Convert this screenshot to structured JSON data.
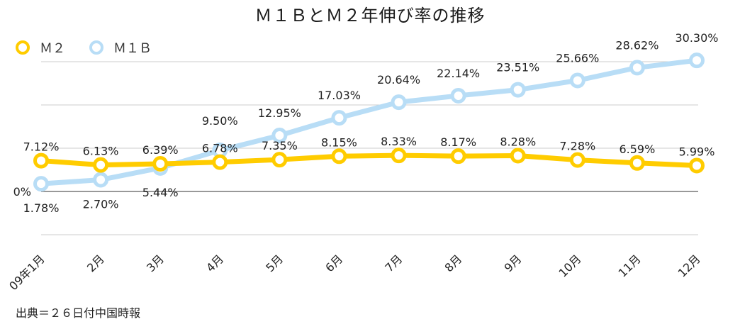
{
  "chart_data": {
    "type": "line",
    "title": "Ｍ１ＢとＭ２年伸び率の推移",
    "categories": [
      "09年1月",
      "2月",
      "3月",
      "4月",
      "5月",
      "6月",
      "7月",
      "8月",
      "9月",
      "10月",
      "11月",
      "12月"
    ],
    "series": [
      {
        "name": "Ｍ２",
        "color": "#FFCC00",
        "values": [
          7.12,
          6.13,
          6.39,
          6.78,
          7.35,
          8.15,
          8.33,
          8.17,
          8.28,
          7.28,
          6.59,
          5.99
        ],
        "labels": [
          "7.12%",
          "6.13%",
          "6.39%",
          "6.78%",
          "7.35%",
          "8.15%",
          "8.33%",
          "8.17%",
          "8.28%",
          "7.28%",
          "6.59%",
          "5.99%"
        ]
      },
      {
        "name": "Ｍ１Ｂ",
        "color": "#B8DDF6",
        "values": [
          1.78,
          2.7,
          5.44,
          9.5,
          12.95,
          17.03,
          20.64,
          22.14,
          23.51,
          25.66,
          28.62,
          30.3
        ],
        "labels": [
          "1.78%",
          "2.70%",
          "5.44%",
          "9.50%",
          "12.95%",
          "17.03%",
          "20.64%",
          "22.14%",
          "23.51%",
          "25.66%",
          "28.62%",
          "30.30%"
        ]
      }
    ],
    "y_tick_labels": [
      {
        "value": 0,
        "label": "0%"
      }
    ],
    "ylim": [
      -10,
      30
    ],
    "grid": true,
    "legend": "top-left"
  },
  "source_note": "出典＝２６日付中国時報"
}
